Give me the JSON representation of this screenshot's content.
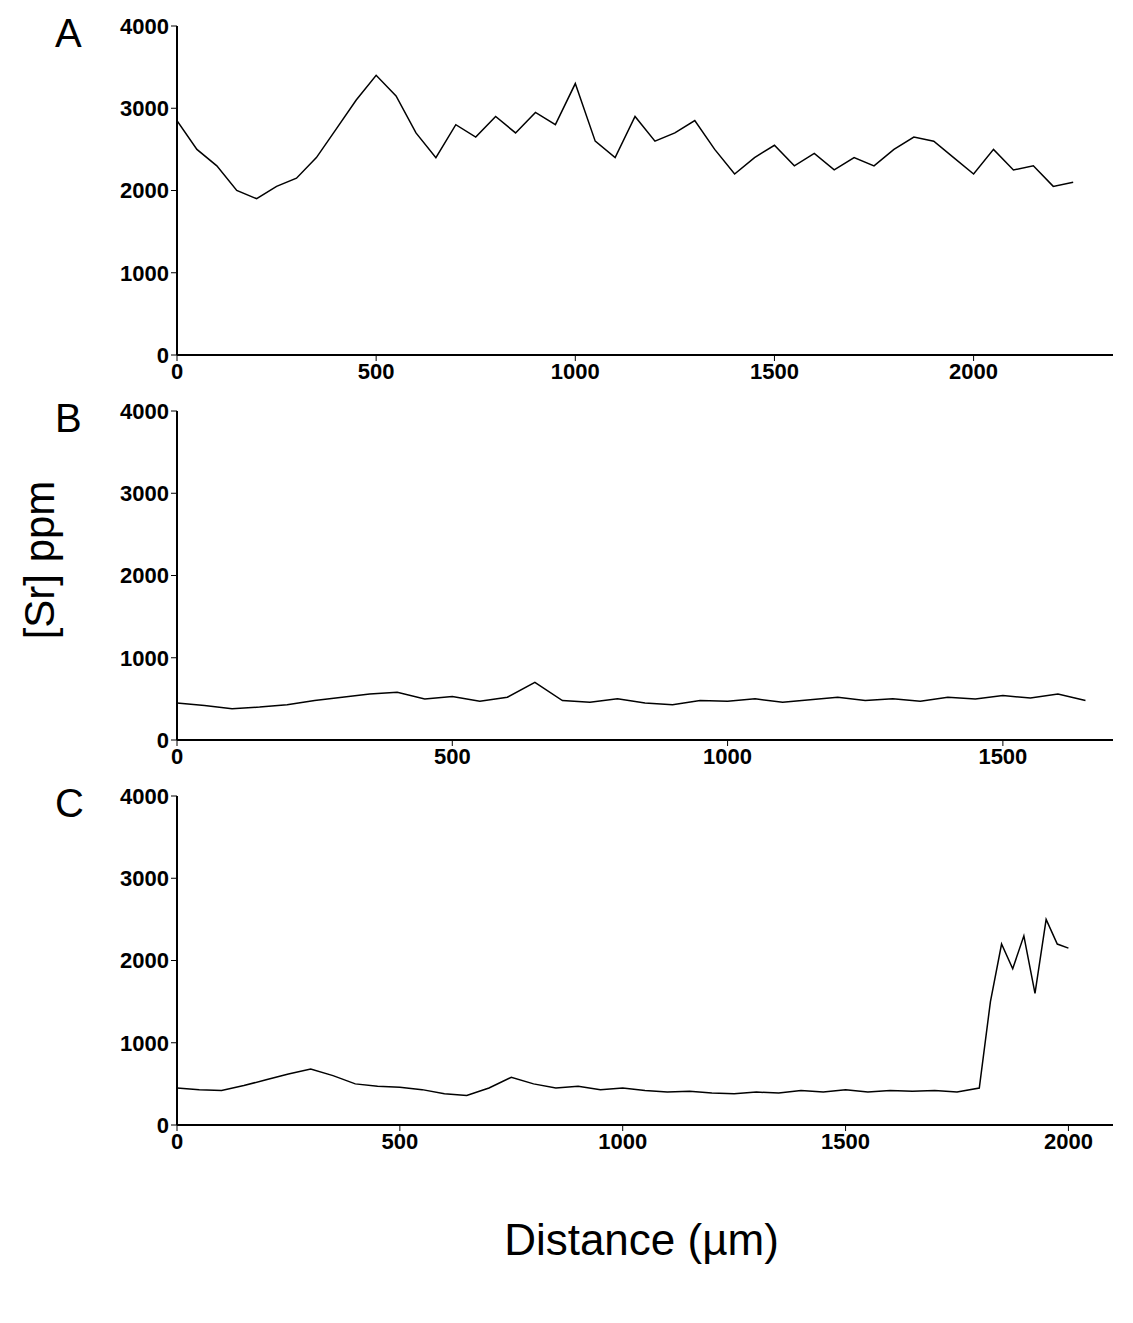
{
  "y_label": "[Sr] ppm",
  "x_label": "Distance (µm)",
  "chart_data": [
    {
      "type": "line",
      "title": "A",
      "xlim": [
        0,
        2350
      ],
      "xticks": [
        0,
        500,
        1000,
        1500,
        2000
      ],
      "ylim": [
        0,
        4000
      ],
      "yticks": [
        0,
        1000,
        2000,
        3000,
        4000
      ],
      "grid": false,
      "series": [
        {
          "color": "#000000",
          "x": [
            0,
            50,
            100,
            150,
            200,
            250,
            300,
            350,
            400,
            450,
            500,
            550,
            600,
            650,
            700,
            750,
            800,
            850,
            900,
            950,
            1000,
            1050,
            1100,
            1150,
            1200,
            1250,
            1300,
            1350,
            1400,
            1450,
            1500,
            1550,
            1600,
            1650,
            1700,
            1750,
            1800,
            1850,
            1900,
            1950,
            2000,
            2050,
            2100,
            2150,
            2200,
            2250
          ],
          "values": [
            2850,
            2500,
            2300,
            2000,
            1900,
            2050,
            2150,
            2400,
            2750,
            3100,
            3400,
            3150,
            2700,
            2400,
            2800,
            2650,
            2900,
            2700,
            2950,
            2800,
            3300,
            2600,
            2400,
            2900,
            2600,
            2700,
            2850,
            2500,
            2200,
            2400,
            2550,
            2300,
            2450,
            2250,
            2400,
            2300,
            2500,
            2650,
            2600,
            2400,
            2200,
            2500,
            2250,
            2300,
            2050,
            2100
          ]
        }
      ]
    },
    {
      "type": "line",
      "title": "B",
      "xlim": [
        0,
        1700
      ],
      "xticks": [
        0,
        500,
        1000,
        1500
      ],
      "ylim": [
        0,
        4000
      ],
      "yticks": [
        0,
        1000,
        2000,
        3000,
        4000
      ],
      "grid": false,
      "series": [
        {
          "color": "#000000",
          "x": [
            0,
            50,
            100,
            150,
            200,
            250,
            300,
            350,
            400,
            450,
            500,
            550,
            600,
            650,
            700,
            750,
            800,
            850,
            900,
            950,
            1000,
            1050,
            1100,
            1150,
            1200,
            1250,
            1300,
            1350,
            1400,
            1450,
            1500,
            1550,
            1600,
            1650
          ],
          "values": [
            450,
            420,
            380,
            400,
            430,
            480,
            520,
            560,
            580,
            500,
            530,
            470,
            520,
            700,
            480,
            460,
            500,
            450,
            430,
            480,
            470,
            500,
            460,
            490,
            520,
            480,
            500,
            470,
            520,
            500,
            540,
            510,
            560,
            480
          ]
        }
      ]
    },
    {
      "type": "line",
      "title": "C",
      "xlim": [
        0,
        2100
      ],
      "xticks": [
        0,
        500,
        1000,
        1500,
        2000
      ],
      "ylim": [
        0,
        4000
      ],
      "yticks": [
        0,
        1000,
        2000,
        3000,
        4000
      ],
      "grid": false,
      "series": [
        {
          "color": "#000000",
          "x": [
            0,
            50,
            100,
            150,
            200,
            250,
            300,
            350,
            400,
            450,
            500,
            550,
            600,
            650,
            700,
            750,
            800,
            850,
            900,
            950,
            1000,
            1050,
            1100,
            1150,
            1200,
            1250,
            1300,
            1350,
            1400,
            1450,
            1500,
            1550,
            1600,
            1650,
            1700,
            1750,
            1800,
            1825,
            1850,
            1875,
            1900,
            1925,
            1950,
            1975,
            2000
          ],
          "values": [
            450,
            430,
            420,
            480,
            550,
            620,
            680,
            600,
            500,
            470,
            460,
            430,
            380,
            360,
            450,
            580,
            500,
            450,
            470,
            430,
            450,
            420,
            400,
            410,
            390,
            380,
            400,
            390,
            420,
            400,
            430,
            400,
            420,
            410,
            420,
            400,
            450,
            1500,
            2200,
            1900,
            2300,
            1600,
            2500,
            2200,
            2150
          ]
        }
      ]
    }
  ]
}
